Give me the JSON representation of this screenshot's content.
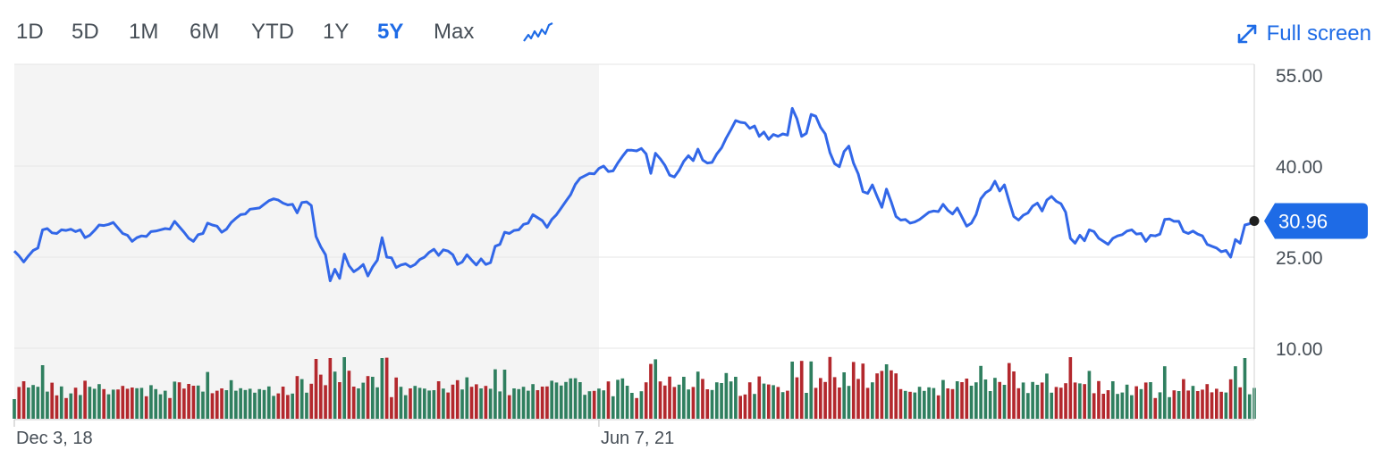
{
  "range_selector": {
    "options": [
      "1D",
      "5D",
      "1M",
      "6M",
      "YTD",
      "1Y",
      "5Y",
      "Max"
    ],
    "selected": "5Y"
  },
  "toolbar": {
    "chart_type_icon": "line-chart-icon",
    "fullscreen_icon": "expand-arrows-icon",
    "fullscreen_label": "Full screen"
  },
  "colors": {
    "accent": "#1e6be6",
    "line": "#3267e8",
    "volume_up": "#2f7f5f",
    "volume_down": "#b3282d",
    "shaded_bg": "#f4f4f4",
    "grid": "#e6e6e6"
  },
  "chart_data": {
    "type": "line",
    "ylim": [
      10,
      55
    ],
    "yticks": [
      "55.00",
      "40.00",
      "25.00",
      "10.00"
    ],
    "x_tick_labels": [
      {
        "label": "Dec 3, 18",
        "index": 0
      },
      {
        "label": "Jun 7, 21",
        "index": 124
      }
    ],
    "current_price": "30.96",
    "shaded_until_index": 124,
    "series": [
      {
        "values": [
          26.0,
          25.2,
          24.2,
          25.2,
          26.1,
          26.5,
          29.5,
          29.7,
          29.0,
          28.9,
          29.5,
          29.4,
          29.6,
          29.2,
          29.5,
          28.2,
          28.6,
          29.4,
          30.3,
          30.2,
          30.4,
          30.7,
          29.8,
          28.9,
          28.6,
          27.6,
          28.2,
          28.5,
          28.4,
          29.2,
          29.3,
          29.5,
          29.7,
          29.6,
          30.9,
          30.0,
          29.1,
          28.1,
          27.6,
          28.7,
          28.9,
          30.6,
          30.3,
          30.1,
          29.1,
          29.6,
          30.7,
          31.4,
          32.0,
          32.1,
          32.9,
          33.0,
          33.1,
          33.7,
          34.3,
          34.6,
          34.4,
          33.9,
          33.6,
          33.7,
          32.3,
          34.0,
          34.1,
          33.5,
          28.4,
          26.7,
          25.4,
          21.1,
          23.0,
          21.5,
          25.5,
          23.6,
          22.6,
          23.1,
          23.8,
          21.9,
          23.4,
          24.5,
          28.2,
          25.0,
          24.9,
          23.3,
          23.7,
          23.9,
          23.4,
          23.8,
          24.6,
          25.0,
          25.8,
          26.3,
          25.3,
          26.2,
          26.0,
          25.4,
          23.8,
          24.2,
          25.4,
          24.5,
          23.7,
          24.7,
          23.8,
          24.1,
          26.8,
          27.1,
          29.1,
          28.9,
          29.4,
          29.5,
          30.4,
          30.6,
          32.0,
          31.5,
          31.0,
          29.9,
          31.2,
          32.0,
          33.1,
          34.2,
          35.3,
          37.0,
          38.0,
          38.4,
          38.8,
          38.7,
          39.6,
          40.0,
          39.1,
          39.2,
          40.5,
          41.6,
          42.6,
          42.6,
          42.5,
          42.9,
          42.0,
          38.8,
          42.1,
          41.2,
          40.1,
          38.5,
          38.2,
          39.3,
          40.8,
          41.7,
          40.9,
          42.8,
          41.0,
          40.5,
          40.6,
          42.0,
          43.0,
          44.6,
          46.0,
          47.5,
          47.2,
          47.1,
          46.2,
          46.6,
          44.9,
          45.6,
          44.4,
          45.2,
          44.9,
          45.3,
          45.1,
          49.5,
          47.8,
          44.9,
          45.4,
          48.5,
          48.2,
          46.4,
          45.3,
          42.2,
          40.4,
          39.9,
          42.4,
          43.3,
          40.5,
          38.7,
          35.8,
          35.5,
          36.9,
          35.0,
          33.2,
          36.2,
          34.1,
          31.7,
          31.1,
          31.2,
          30.6,
          30.8,
          31.2,
          31.8,
          32.4,
          32.6,
          32.5,
          33.7,
          32.7,
          32.1,
          33.1,
          31.6,
          30.1,
          30.6,
          32.0,
          34.6,
          35.6,
          36.1,
          37.5,
          35.9,
          36.9,
          34.2,
          31.7,
          31.1,
          31.9,
          32.3,
          33.4,
          33.9,
          32.6,
          34.4,
          35.0,
          34.2,
          33.8,
          32.4,
          28.1,
          27.3,
          28.6,
          27.7,
          29.5,
          29.2,
          28.1,
          27.6,
          27.1,
          28.1,
          28.5,
          28.7,
          29.3,
          29.5,
          28.8,
          28.9,
          27.6,
          28.6,
          28.5,
          28.8,
          31.2,
          31.3,
          30.9,
          30.9,
          29.2,
          28.9,
          29.3,
          28.8,
          28.5,
          27.1,
          26.8,
          26.5,
          25.9,
          26.1,
          25.0,
          27.9,
          27.3,
          30.3,
          30.5,
          30.96
        ]
      }
    ]
  }
}
